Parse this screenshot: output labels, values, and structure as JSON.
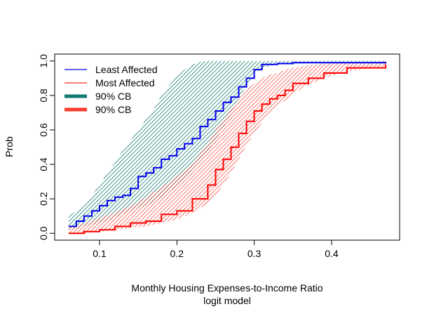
{
  "chart_data": {
    "type": "line",
    "title": "",
    "xlabel": "Monthly Housing Expenses-to-Income Ratio",
    "xlabel2": "logit model",
    "ylabel": "Prob",
    "xlim": [
      0.042,
      0.488
    ],
    "ylim": [
      -0.04,
      1.04
    ],
    "xticks": [
      0.1,
      0.2,
      0.3,
      0.4
    ],
    "yticks": [
      0.0,
      0.2,
      0.4,
      0.6,
      0.8,
      1.0
    ],
    "xtick_labels": [
      "0.1",
      "0.2",
      "0.3",
      "0.4"
    ],
    "ytick_labels": [
      "0.0",
      "0.2",
      "0.4",
      "0.6",
      "0.8",
      "1.0"
    ],
    "grid": false,
    "legend_position": "top-left",
    "legend": [
      {
        "label": "Least Affected",
        "color": "#0000ee",
        "style": "thin"
      },
      {
        "label": "Most Affected",
        "color": "#ff2a2a",
        "style": "thin"
      },
      {
        "label": "90% CB",
        "color": "#127a72",
        "style": "thick"
      },
      {
        "label": "90% CB",
        "color": "#ff3a2a",
        "style": "thick"
      }
    ],
    "series": [
      {
        "name": "Least Affected",
        "color": "#0000ee",
        "band_color": "#127a72",
        "x": [
          0.06,
          0.07,
          0.08,
          0.09,
          0.1,
          0.11,
          0.12,
          0.13,
          0.14,
          0.15,
          0.16,
          0.17,
          0.18,
          0.19,
          0.2,
          0.21,
          0.22,
          0.23,
          0.24,
          0.25,
          0.26,
          0.27,
          0.28,
          0.29,
          0.3,
          0.31,
          0.33,
          0.35,
          0.4,
          0.47
        ],
        "y": [
          0.04,
          0.07,
          0.1,
          0.13,
          0.16,
          0.19,
          0.21,
          0.22,
          0.26,
          0.33,
          0.35,
          0.38,
          0.43,
          0.45,
          0.49,
          0.52,
          0.55,
          0.62,
          0.66,
          0.71,
          0.76,
          0.79,
          0.85,
          0.9,
          0.95,
          0.98,
          0.985,
          0.99,
          0.99,
          0.995
        ],
        "lower": [
          0.02,
          0.03,
          0.04,
          0.05,
          0.06,
          0.07,
          0.09,
          0.11,
          0.13,
          0.15,
          0.16,
          0.18,
          0.21,
          0.24,
          0.27,
          0.31,
          0.37,
          0.42,
          0.47,
          0.54,
          0.61,
          0.69,
          0.78,
          0.86,
          0.92,
          0.96,
          0.98,
          0.985,
          0.99,
          0.99
        ],
        "upper": [
          0.1,
          0.13,
          0.17,
          0.22,
          0.28,
          0.35,
          0.41,
          0.48,
          0.54,
          0.6,
          0.66,
          0.72,
          0.8,
          0.86,
          0.91,
          0.95,
          0.98,
          0.995,
          1.0,
          1.0,
          1.0,
          1.0,
          1.0,
          1.0,
          1.0,
          1.0,
          1.0,
          1.0,
          1.0,
          1.0
        ]
      },
      {
        "name": "Most Affected",
        "color": "#ff0000",
        "band_color": "#ff3a2a",
        "x": [
          0.06,
          0.08,
          0.1,
          0.12,
          0.14,
          0.16,
          0.18,
          0.2,
          0.22,
          0.24,
          0.25,
          0.26,
          0.27,
          0.28,
          0.29,
          0.3,
          0.31,
          0.32,
          0.33,
          0.34,
          0.35,
          0.37,
          0.39,
          0.42,
          0.47
        ],
        "y": [
          0.0,
          0.01,
          0.02,
          0.04,
          0.06,
          0.07,
          0.11,
          0.13,
          0.2,
          0.28,
          0.37,
          0.43,
          0.5,
          0.58,
          0.65,
          0.71,
          0.75,
          0.78,
          0.8,
          0.83,
          0.87,
          0.9,
          0.93,
          0.96,
          0.98
        ],
        "lower": [
          0.0,
          0.0,
          0.01,
          0.02,
          0.03,
          0.04,
          0.06,
          0.08,
          0.12,
          0.17,
          0.22,
          0.28,
          0.35,
          0.43,
          0.51,
          0.58,
          0.64,
          0.7,
          0.74,
          0.77,
          0.81,
          0.86,
          0.9,
          0.94,
          0.97
        ],
        "upper": [
          0.03,
          0.06,
          0.09,
          0.12,
          0.16,
          0.21,
          0.27,
          0.33,
          0.41,
          0.52,
          0.6,
          0.66,
          0.72,
          0.78,
          0.83,
          0.87,
          0.9,
          0.92,
          0.93,
          0.95,
          0.96,
          0.975,
          0.985,
          0.99,
          0.995
        ]
      }
    ]
  }
}
